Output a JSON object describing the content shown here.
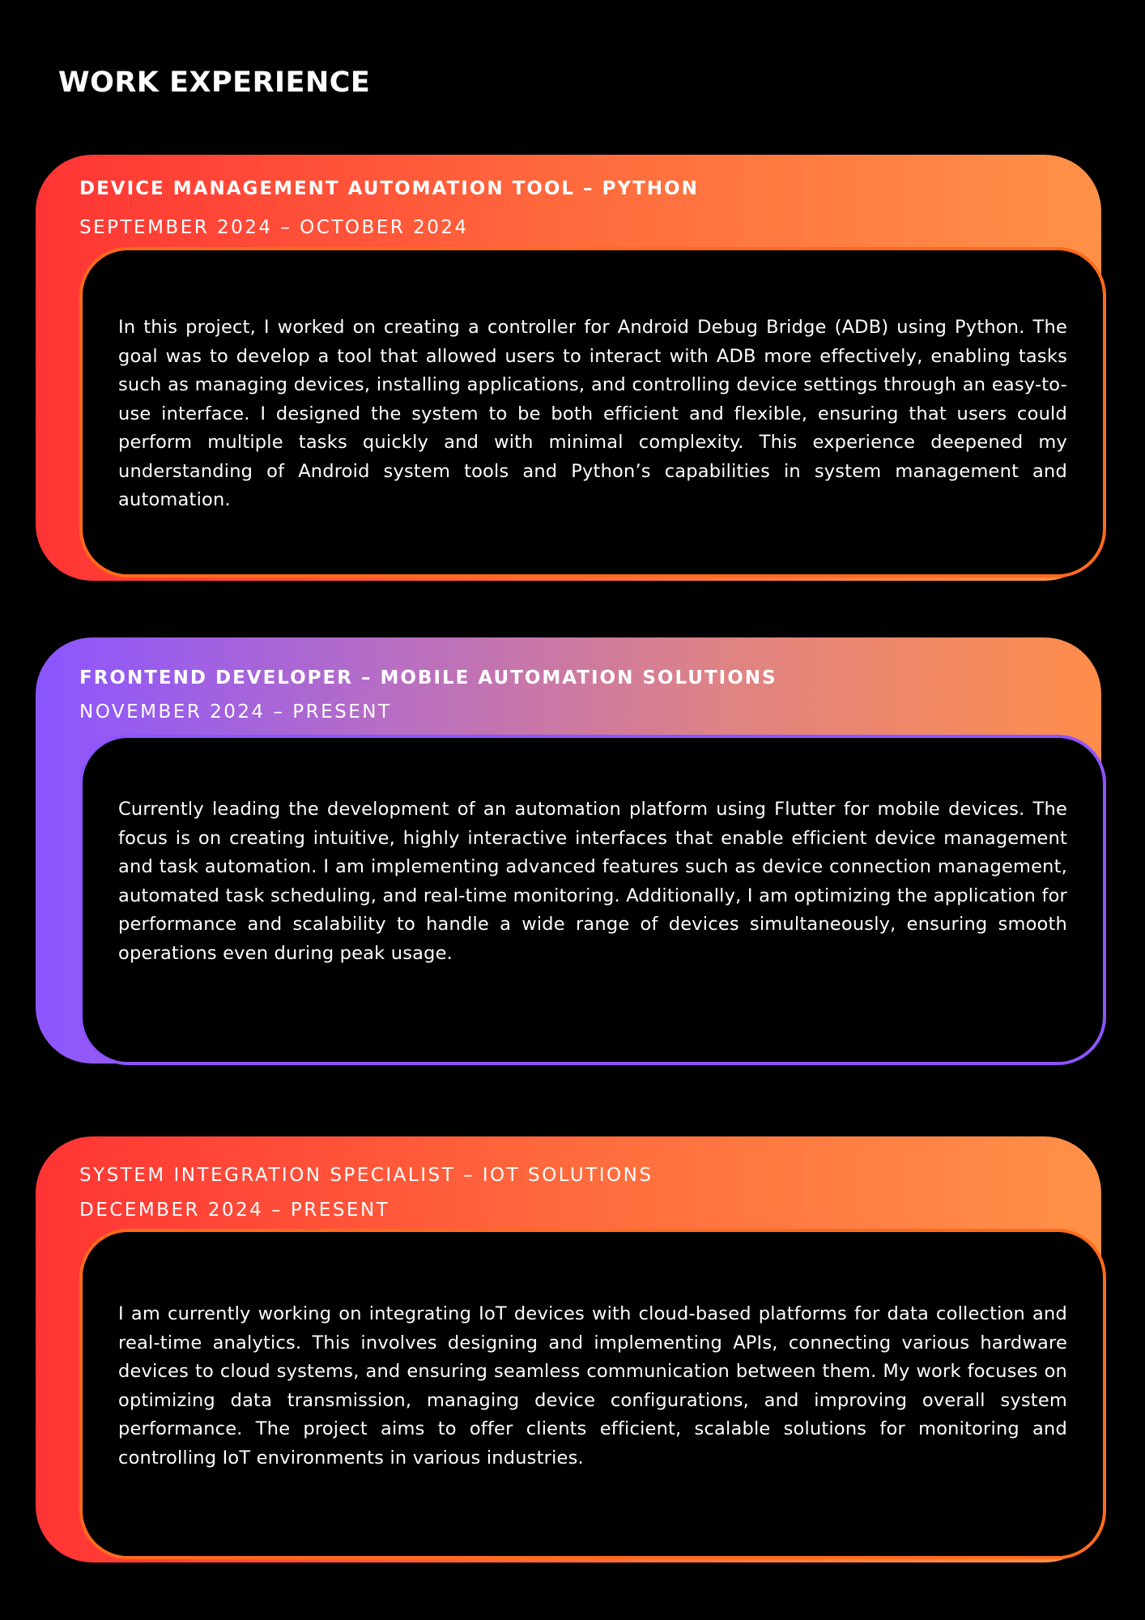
{
  "heading": "WORK EXPERIENCE",
  "colors": {
    "background": "#000000",
    "warm_start": "#ff3434",
    "warm_end": "#ff9148",
    "cool_start": "#8b55ff",
    "inner_border_warm": "#ff6a1c",
    "inner_border_cool": "#8d55ff",
    "text": "#ffffff"
  },
  "experiences": [
    {
      "title": "DEVICE MANAGEMENT AUTOMATION TOOL – PYTHON",
      "dates": "SEPTEMBER 2024 – OCTOBER 2024",
      "description": "In this project, I worked on creating a controller for Android Debug Bridge (ADB) using Python. The goal was to develop a tool that allowed users to interact with ADB more effectively, enabling tasks such as managing devices, installing applications, and controlling device settings through an easy-to-use interface. I designed the system to be both efficient and flexible, ensuring that users could perform multiple tasks quickly and with minimal complexity. This experience deepened my understanding of Android system tools and Python’s capabilities in system management and automation."
    },
    {
      "title": "FRONTEND DEVELOPER – MOBILE AUTOMATION SOLUTIONS",
      "dates": "NOVEMBER 2024 – PRESENT",
      "description": "Currently leading the development of an automation platform using Flutter for mobile devices. The focus is on creating intuitive, highly interactive interfaces that enable efficient device management and task automation. I am implementing advanced features such as device connection management, automated task scheduling, and real-time monitoring. Additionally, I am optimizing the application for performance and scalability to handle a wide range of devices simultaneously, ensuring smooth operations even during peak usage."
    },
    {
      "title": "SYSTEM INTEGRATION SPECIALIST – IOT SOLUTIONS",
      "dates": "DECEMBER 2024 – PRESENT",
      "description": "I am currently working on integrating IoT devices with cloud-based platforms for data collection and real-time analytics. This involves designing and implementing APIs, connecting various hardware devices to cloud systems, and ensuring seamless communication between them. My work focuses on optimizing data transmission, managing device configurations, and improving overall system performance. The project aims to offer clients efficient, scalable solutions for monitoring and controlling IoT environments in various industries."
    }
  ]
}
